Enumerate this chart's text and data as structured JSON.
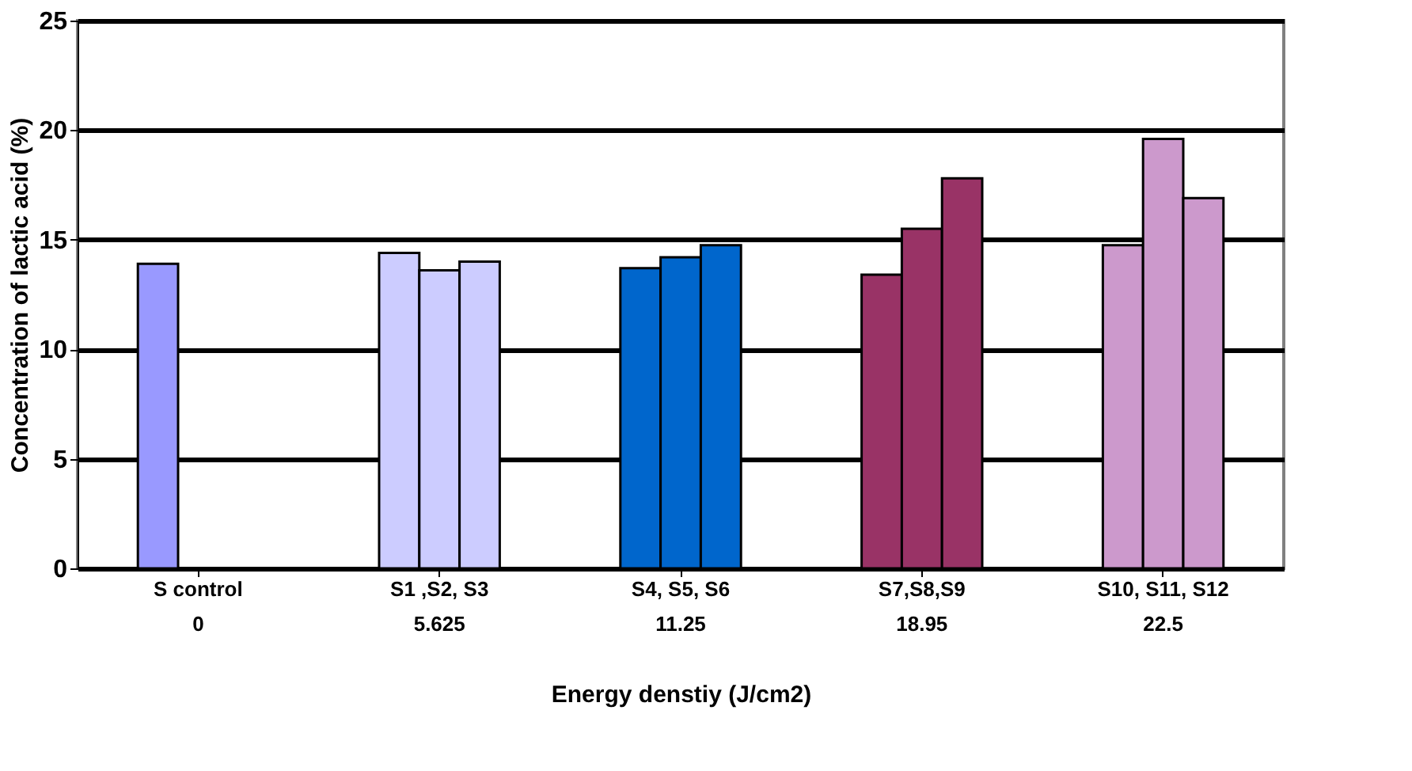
{
  "chart_data": {
    "type": "bar",
    "xlabel": "Energy denstiy (J/cm2)",
    "ylabel": "Concentration of lactic acid (%)",
    "categories": [
      "S control\n0",
      "S1 ,S2, S3\n5.625",
      "S4, S5, S6\n11.25",
      "S7,S8,S9\n18.95",
      "S10, S11, S12\n22.5"
    ],
    "series": [
      {
        "colors": [
          "#9999ff",
          "#ccccff",
          "#0066cc",
          "#993366",
          "#cc99cc"
        ],
        "values": [
          13.9,
          14.4,
          13.7,
          13.4,
          14.75
        ]
      },
      {
        "colors": [
          "#9999ff",
          "#ccccff",
          "#0066cc",
          "#993366",
          "#cc99cc"
        ],
        "values": [
          null,
          13.6,
          14.2,
          15.5,
          19.6
        ]
      },
      {
        "colors": [
          "#9999ff",
          "#ccccff",
          "#0066cc",
          "#993366",
          "#cc99cc"
        ],
        "values": [
          null,
          14.0,
          14.75,
          17.8,
          16.9
        ]
      }
    ],
    "ylim": [
      0,
      25
    ],
    "yticks": [
      0,
      5,
      10,
      15,
      20,
      25
    ],
    "grid": "y"
  }
}
